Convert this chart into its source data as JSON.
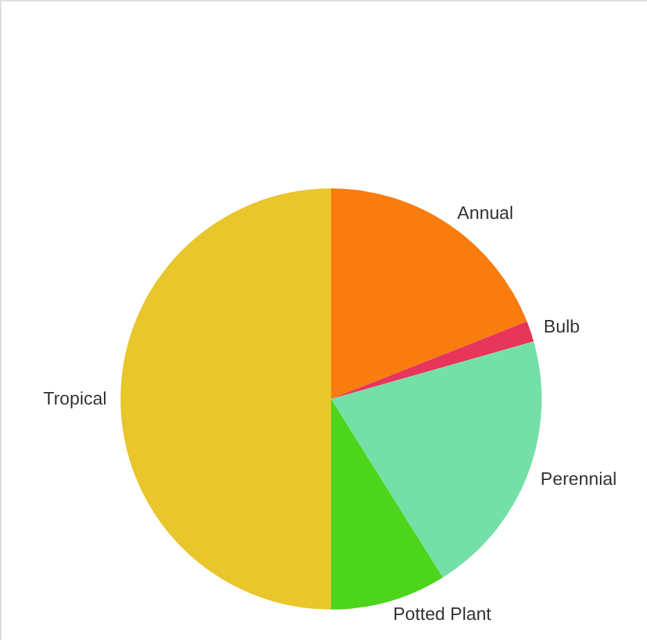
{
  "chart_data": {
    "type": "pie",
    "categories": [
      "Annual",
      "Bulb",
      "Perennial",
      "Potted Plant",
      "Tropical"
    ],
    "values": [
      19,
      1.6,
      20.5,
      8.9,
      50
    ],
    "colors": [
      "#f97c0e",
      "#e8355a",
      "#74e0a8",
      "#4cd51c",
      "#e8c62c"
    ]
  }
}
